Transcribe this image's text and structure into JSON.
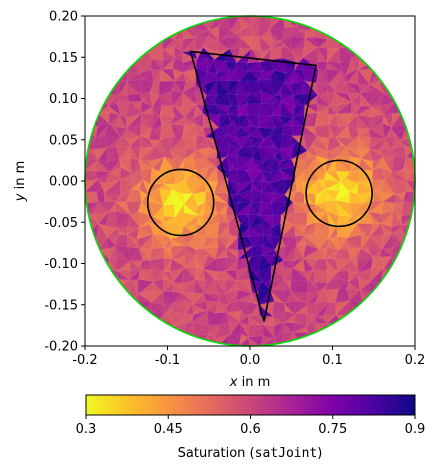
{
  "chart_data": {
    "type": "heatmap",
    "description_free": true,
    "xlabel_var": "x",
    "xlabel_rest": " in m",
    "ylabel_var": "y",
    "ylabel_rest": " in m",
    "xlim": [
      -0.2,
      0.2
    ],
    "ylim": [
      -0.2,
      0.2
    ],
    "xticks": [
      "-0.2",
      "-0.1",
      "0.0",
      "0.1",
      "0.2"
    ],
    "xtick_values": [
      -0.2,
      -0.1,
      0.0,
      0.1,
      0.2
    ],
    "yticks": [
      "-0.20",
      "-0.15",
      "-0.10",
      "-0.05",
      "0.00",
      "0.05",
      "0.10",
      "0.15",
      "0.20"
    ],
    "ytick_values": [
      -0.2,
      -0.15,
      -0.1,
      -0.05,
      0.0,
      0.05,
      0.1,
      0.15,
      0.2
    ],
    "domain_radius": 0.2,
    "domain_outline_color": "#00dd00",
    "inclusions": [
      {
        "shape": "circle",
        "cx": -0.084,
        "cy": -0.026,
        "r": 0.04,
        "mean_saturation": 0.33
      },
      {
        "shape": "circle",
        "cx": 0.108,
        "cy": -0.015,
        "r": 0.04,
        "mean_saturation": 0.33
      },
      {
        "shape": "triangle",
        "points": [
          [
            -0.072,
            0.157
          ],
          [
            0.08,
            0.14
          ],
          [
            0.017,
            -0.17
          ]
        ],
        "mean_saturation": 0.84
      }
    ],
    "background_saturation": 0.6,
    "colorbar": {
      "cmap": "plasma_r",
      "vmin": 0.3,
      "vmax": 0.9,
      "ticks": [
        "0.3",
        "0.45",
        "0.6",
        "0.75",
        "0.9"
      ],
      "tick_values": [
        0.3,
        0.45,
        0.6,
        0.75,
        0.9
      ],
      "label_prefix": "Saturation (",
      "label_code": "satJoint",
      "label_suffix": ")"
    }
  }
}
